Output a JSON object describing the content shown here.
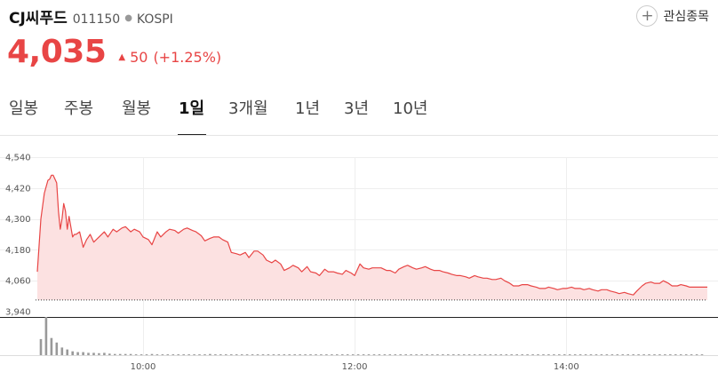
{
  "stock": {
    "name": "CJ씨푸드",
    "code": "011150",
    "market": "KOSPI",
    "price": "4,035",
    "change": "50",
    "change_pct": "(+1.25%)",
    "favorite_label": "관심종목",
    "color_up": "#e84545"
  },
  "tabs": [
    {
      "label": "일봉",
      "active": false
    },
    {
      "label": "주봉",
      "active": false
    },
    {
      "label": "월봉",
      "active": false
    },
    {
      "label": "1일",
      "active": true
    },
    {
      "label": "3개월",
      "active": false
    },
    {
      "label": "1년",
      "active": false
    },
    {
      "label": "3년",
      "active": false
    },
    {
      "label": "10년",
      "active": false
    }
  ],
  "chart_data": {
    "type": "area",
    "title": "",
    "xlabel": "",
    "ylabel": "",
    "y_ticks": [
      "4,540",
      "4,420",
      "4,300",
      "4,180",
      "4,060",
      "3,940"
    ],
    "y_tick_values": [
      4540,
      4420,
      4300,
      4180,
      4060,
      3940
    ],
    "x_ticks": [
      "10:00",
      "12:00",
      "14:00"
    ],
    "x_tick_minutes": [
      600,
      720,
      840
    ],
    "ylim": [
      3940,
      4540
    ],
    "xlim": [
      539,
      920
    ],
    "prev_close": 3985,
    "grid": true,
    "series": [
      {
        "color": "#e84545",
        "fill": "#fce1e1",
        "x": [
          540,
          542,
          544,
          546,
          547,
          548,
          549,
          551,
          552,
          553,
          554,
          555,
          556,
          557,
          558,
          559,
          560,
          561,
          562,
          564,
          566,
          568,
          570,
          572,
          575,
          578,
          580,
          583,
          585,
          588,
          590,
          593,
          595,
          598,
          600,
          603,
          605,
          608,
          610,
          613,
          615,
          618,
          620,
          623,
          625,
          628,
          630,
          633,
          635,
          638,
          640,
          643,
          645,
          648,
          650,
          653,
          655,
          658,
          660,
          663,
          665,
          668,
          670,
          673,
          675,
          678,
          680,
          683,
          685,
          688,
          690,
          693,
          695,
          698,
          700,
          703,
          705,
          708,
          710,
          713,
          715,
          718,
          720,
          723,
          725,
          728,
          730,
          733,
          735,
          738,
          740,
          743,
          745,
          748,
          750,
          753,
          755,
          758,
          760,
          763,
          765,
          768,
          770,
          773,
          775,
          778,
          780,
          783,
          785,
          788,
          790,
          793,
          795,
          798,
          800,
          803,
          805,
          808,
          810,
          813,
          815,
          818,
          820,
          823,
          825,
          828,
          830,
          833,
          835,
          838,
          840,
          843,
          845,
          848,
          850,
          853,
          855,
          858,
          860,
          863,
          865,
          868,
          870,
          873,
          875,
          878,
          880,
          883,
          885,
          888,
          890,
          893,
          895,
          898,
          900,
          903,
          905,
          908,
          910,
          913,
          915,
          918,
          920
        ],
        "values": [
          4095,
          4300,
          4400,
          4450,
          4455,
          4470,
          4470,
          4440,
          4330,
          4260,
          4300,
          4360,
          4330,
          4260,
          4310,
          4270,
          4230,
          4240,
          4240,
          4250,
          4190,
          4220,
          4240,
          4210,
          4230,
          4250,
          4230,
          4260,
          4250,
          4265,
          4270,
          4250,
          4260,
          4250,
          4230,
          4220,
          4200,
          4250,
          4230,
          4250,
          4260,
          4255,
          4245,
          4260,
          4265,
          4255,
          4250,
          4235,
          4215,
          4225,
          4230,
          4230,
          4220,
          4210,
          4170,
          4165,
          4160,
          4170,
          4150,
          4175,
          4175,
          4160,
          4140,
          4130,
          4140,
          4125,
          4100,
          4110,
          4120,
          4110,
          4095,
          4115,
          4095,
          4090,
          4080,
          4105,
          4095,
          4095,
          4090,
          4085,
          4100,
          4090,
          4080,
          4125,
          4110,
          4105,
          4110,
          4110,
          4110,
          4100,
          4100,
          4090,
          4105,
          4115,
          4120,
          4110,
          4105,
          4110,
          4115,
          4105,
          4100,
          4100,
          4095,
          4090,
          4085,
          4080,
          4080,
          4075,
          4070,
          4080,
          4075,
          4070,
          4070,
          4065,
          4065,
          4070,
          4060,
          4050,
          4040,
          4040,
          4045,
          4045,
          4040,
          4035,
          4030,
          4030,
          4035,
          4030,
          4025,
          4030,
          4030,
          4035,
          4030,
          4030,
          4025,
          4030,
          4025,
          4020,
          4025,
          4025,
          4020,
          4015,
          4010,
          4015,
          4010,
          4005,
          4020,
          4040,
          4050,
          4055,
          4050,
          4050,
          4060,
          4050,
          4040,
          4040,
          4045,
          4040,
          4035,
          4035,
          4035,
          4035,
          4035
        ]
      }
    ],
    "volume": {
      "color": "#999999",
      "x": [
        542,
        545,
        548,
        551,
        554,
        557,
        560,
        563,
        566,
        569,
        572,
        575,
        578,
        581,
        584,
        587,
        590,
        593,
        596,
        599,
        602,
        605,
        608,
        611,
        614,
        617,
        620,
        623,
        626,
        629,
        632,
        635,
        638,
        641,
        644,
        647,
        650,
        653,
        656,
        659,
        662,
        665,
        668,
        671,
        674,
        677,
        680,
        683,
        686,
        689,
        692,
        695,
        698,
        701,
        704,
        707,
        710,
        713,
        716,
        719,
        722,
        725,
        728,
        731,
        734,
        737,
        740,
        743,
        746,
        749,
        752,
        755,
        758,
        761,
        764,
        767,
        770,
        773,
        776,
        779,
        782,
        785,
        788,
        791,
        794,
        797,
        800,
        803,
        806,
        809,
        812,
        815,
        818,
        821,
        824,
        827,
        830,
        833,
        836,
        839,
        842,
        845,
        848,
        851,
        854,
        857,
        860,
        863,
        866,
        869,
        872,
        875,
        878,
        881,
        884,
        887,
        890,
        893,
        896,
        899,
        902,
        905,
        908,
        911,
        914,
        917
      ],
      "values": [
        42,
        100,
        45,
        33,
        20,
        15,
        10,
        8,
        8,
        6,
        6,
        5,
        6,
        4,
        3,
        3,
        3,
        3,
        2,
        2,
        2,
        3,
        2,
        2,
        2,
        2,
        2,
        2,
        2,
        2,
        2,
        2,
        3,
        2,
        2,
        2,
        2,
        2,
        2,
        2,
        2,
        2,
        2,
        2,
        2,
        2,
        2,
        2,
        2,
        2,
        2,
        2,
        2,
        2,
        2,
        2,
        2,
        2,
        2,
        2,
        2,
        2,
        2,
        2,
        2,
        2,
        2,
        2,
        2,
        2,
        2,
        2,
        2,
        2,
        2,
        2,
        2,
        2,
        2,
        2,
        2,
        2,
        2,
        2,
        2,
        2,
        2,
        2,
        2,
        2,
        2,
        2,
        2,
        2,
        2,
        2,
        2,
        2,
        2,
        2,
        2,
        2,
        2,
        2,
        2,
        2,
        2,
        2,
        2,
        2,
        2,
        2,
        2,
        2,
        2,
        2,
        2,
        2,
        2,
        2,
        2,
        2,
        2,
        2,
        2,
        2
      ]
    }
  }
}
